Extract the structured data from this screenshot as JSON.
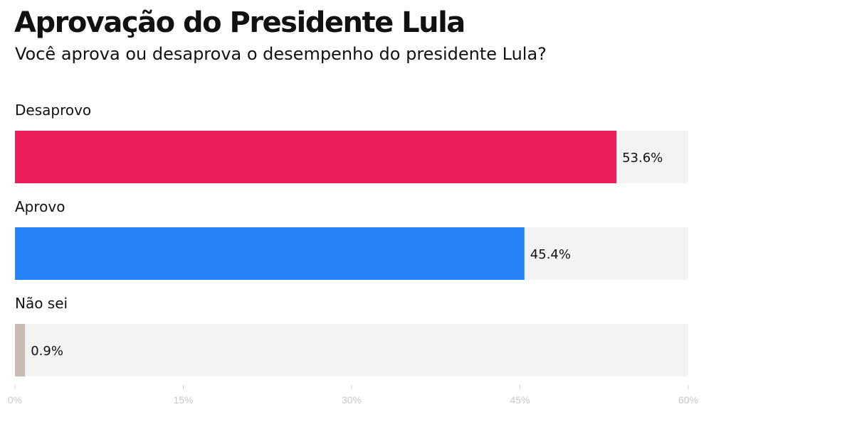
{
  "chart_data": {
    "type": "bar",
    "orientation": "horizontal",
    "title": "Aprovação do Presidente Lula",
    "subtitle": "Você aprova ou desaprova o desempenho do presidente Lula?",
    "categories": [
      "Desaprovo",
      "Aprovo",
      "Não sei"
    ],
    "values": [
      53.6,
      45.4,
      0.9
    ],
    "value_labels": [
      "53.6%",
      "45.4%",
      "0.9%"
    ],
    "colors": [
      "#ec1f5b",
      "#2683f9",
      "#c6bcb5"
    ],
    "track_color": "#f3f3f1",
    "xlim": [
      0,
      60
    ],
    "xticks": [
      0,
      15,
      30,
      45,
      60
    ],
    "xtick_labels": [
      "0%",
      "15%",
      "30%",
      "45%",
      "60%"
    ],
    "grid": false,
    "legend": "none"
  }
}
